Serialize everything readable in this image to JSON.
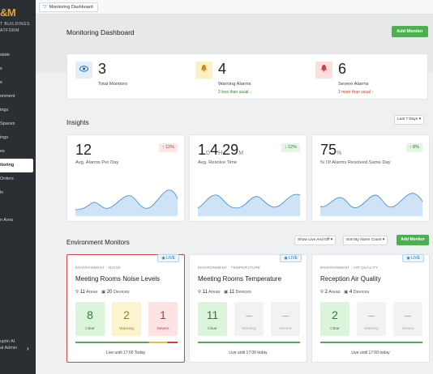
{
  "sidebar": {
    "logo": "&M",
    "logo_sub": [
      "T BUILDINGS",
      "ATFORM"
    ],
    "items": [
      {
        "label": "state"
      },
      {
        "label": "s"
      },
      {
        "label": "e"
      },
      {
        "label": "onment"
      },
      {
        "label": "ings"
      },
      {
        "label": "Spaces"
      },
      {
        "label": "ings"
      },
      {
        "label": "es"
      },
      {
        "label": "itoring"
      },
      {
        "label": "Orders"
      },
      {
        "label": "ls"
      },
      {
        "label": ""
      },
      {
        "label": "n Area"
      }
    ],
    "user": [
      "uptin Al",
      "al Admin"
    ]
  },
  "topbar": {
    "tab_label": "Monitoring Dashboard"
  },
  "header": {
    "title": "Monitoring Dashboard",
    "add_button": "Add Monitor"
  },
  "summary": [
    {
      "value": "3",
      "label": "Total Monitors",
      "sub": "",
      "icon": "eye-icon"
    },
    {
      "value": "4",
      "label": "Warning Alarms",
      "sub": "2 less than usual ↓",
      "icon": "bell-icon"
    },
    {
      "value": "6",
      "label": "Severe Alarms",
      "sub": "2 more than usual ↑",
      "icon": "bell-icon"
    }
  ],
  "insights": {
    "title": "Insights",
    "range": "Last 7 Days",
    "cards": [
      {
        "value": "12",
        "label": "Avg. Alarms Per Day",
        "badge": "↑ 12%"
      },
      {
        "value_parts": [
          "1",
          "D",
          "4",
          "H",
          "29",
          "M"
        ],
        "label": "Avg. Resolve Time",
        "badge": "↓ 12%"
      },
      {
        "value": "75",
        "unit": "%",
        "label": "% Of Alarms Resolved Same Day",
        "badge": "↑ 8%"
      }
    ]
  },
  "monitors": {
    "title": "Environment Monitors",
    "filter": "Show Live And Off",
    "sort": "Sort By Alarm Count",
    "add_button": "Add Monitor",
    "cards": [
      {
        "live": "LIVE",
        "category": "ENVIRONMENT · NOISE",
        "title": "Meeting Rooms Noise Levels",
        "areas": "11",
        "areas_label": "Areas",
        "devices": "20",
        "devices_label": "Devices",
        "tiles": [
          {
            "n": "8",
            "l": "Clear"
          },
          {
            "n": "2",
            "l": "Warning"
          },
          {
            "n": "1",
            "l": "Severe"
          }
        ],
        "footer": "Live until 17:00 Today"
      },
      {
        "live": "LIVE",
        "category": "ENVIRONMENT · TEMPERATURE",
        "title": "Meeting Rooms Temperature",
        "areas": "11",
        "areas_label": "Areas",
        "devices": "11",
        "devices_label": "Devices",
        "tiles": [
          {
            "n": "11",
            "l": "Clear"
          },
          {
            "n": "–",
            "l": "Warning"
          },
          {
            "n": "–",
            "l": "Severe"
          }
        ],
        "footer": "Live until 17:00 today"
      },
      {
        "live": "LIVE",
        "category": "ENVIRONMENT · AIR QUALITY",
        "title": "Reception Air Quality",
        "areas": "2",
        "areas_label": "Areas",
        "devices": "4",
        "devices_label": "Devices",
        "tiles": [
          {
            "n": "2",
            "l": "Clear"
          },
          {
            "n": "–",
            "l": "Warning"
          },
          {
            "n": "–",
            "l": "Severe"
          }
        ],
        "footer": "Live until 17:00 today"
      }
    ]
  }
}
